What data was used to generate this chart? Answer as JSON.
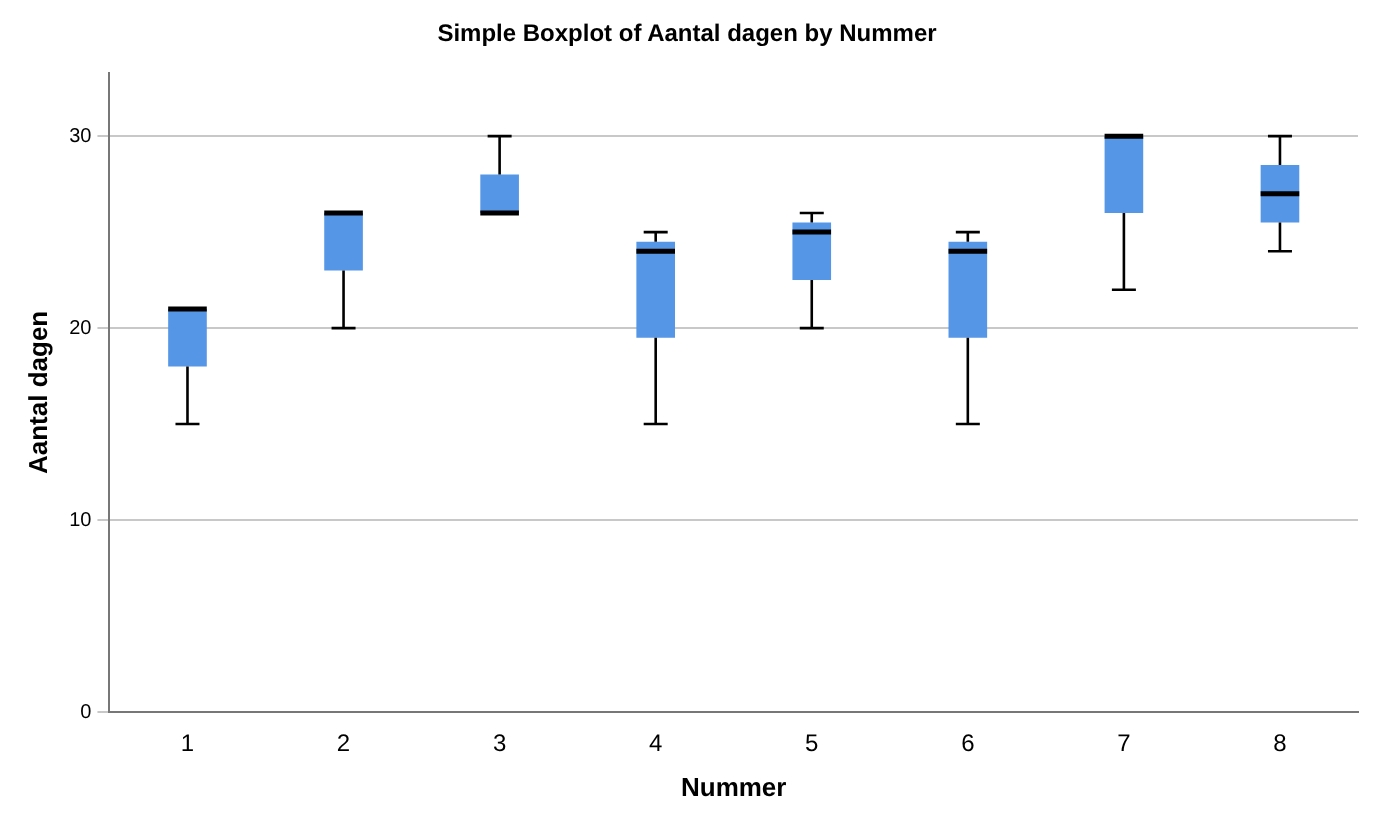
{
  "chart_data": {
    "type": "box",
    "title": "Simple Boxplot of Aantal dagen by Nummer",
    "xlabel": "Nummer",
    "ylabel": "Aantal dagen",
    "categories": [
      "1",
      "2",
      "3",
      "4",
      "5",
      "6",
      "7",
      "8"
    ],
    "color": "#5596e6",
    "boxes": [
      {
        "low": 15,
        "q1": 18,
        "median": 21,
        "q3": 21,
        "high": 21
      },
      {
        "low": 20,
        "q1": 23,
        "median": 26,
        "q3": 26,
        "high": 26
      },
      {
        "low": 26,
        "q1": 26,
        "median": 26,
        "q3": 28,
        "high": 30
      },
      {
        "low": 15,
        "q1": 19.5,
        "median": 24,
        "q3": 24.5,
        "high": 25
      },
      {
        "low": 20,
        "q1": 22.5,
        "median": 25,
        "q3": 25.5,
        "high": 26
      },
      {
        "low": 15,
        "q1": 19.5,
        "median": 24,
        "q3": 24.5,
        "high": 25
      },
      {
        "low": 22,
        "q1": 26,
        "median": 30,
        "q3": 30,
        "high": 30
      },
      {
        "low": 24,
        "q1": 25.5,
        "median": 27,
        "q3": 28.5,
        "high": 30
      }
    ],
    "ylim": [
      0,
      33.3
    ],
    "yticks": [
      0,
      10,
      20,
      30
    ],
    "grid": "y",
    "legend": false
  }
}
